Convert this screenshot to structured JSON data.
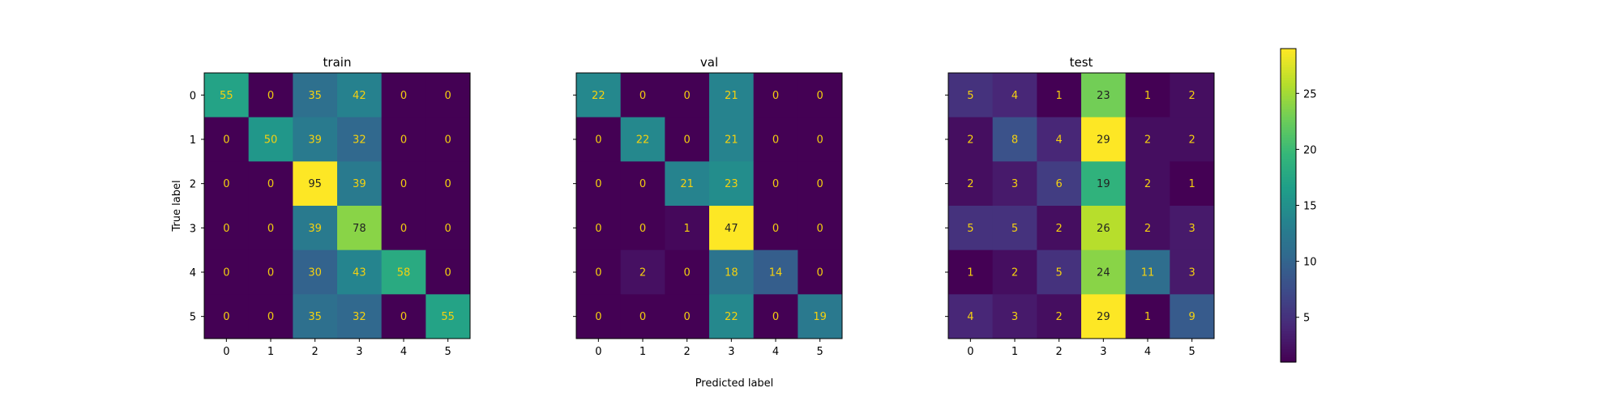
{
  "figure": {
    "xlabel": "Predicted label",
    "ylabel": "True label"
  },
  "colorbar": {
    "ticks": [
      5,
      10,
      15,
      20,
      25
    ],
    "range": [
      1,
      29
    ],
    "colormap": "viridis"
  },
  "chart_data": [
    {
      "type": "heatmap",
      "title": "train",
      "x": [
        "0",
        "1",
        "2",
        "3",
        "4",
        "5"
      ],
      "y": [
        "0",
        "1",
        "2",
        "3",
        "4",
        "5"
      ],
      "xlabel": "Predicted label",
      "ylabel": "True label",
      "values": [
        [
          55,
          0,
          35,
          42,
          0,
          0
        ],
        [
          0,
          50,
          39,
          32,
          0,
          0
        ],
        [
          0,
          0,
          95,
          39,
          0,
          0
        ],
        [
          0,
          0,
          39,
          78,
          0,
          0
        ],
        [
          0,
          0,
          30,
          43,
          58,
          0
        ],
        [
          0,
          0,
          35,
          32,
          0,
          55
        ]
      ]
    },
    {
      "type": "heatmap",
      "title": "val",
      "x": [
        "0",
        "1",
        "2",
        "3",
        "4",
        "5"
      ],
      "y": [
        "0",
        "1",
        "2",
        "3",
        "4",
        "5"
      ],
      "xlabel": "",
      "ylabel": "",
      "values": [
        [
          22,
          0,
          0,
          21,
          0,
          0
        ],
        [
          0,
          22,
          0,
          21,
          0,
          0
        ],
        [
          0,
          0,
          21,
          23,
          0,
          0
        ],
        [
          0,
          0,
          1,
          47,
          0,
          0
        ],
        [
          0,
          2,
          0,
          18,
          14,
          0
        ],
        [
          0,
          0,
          0,
          22,
          0,
          19
        ]
      ]
    },
    {
      "type": "heatmap",
      "title": "test",
      "x": [
        "0",
        "1",
        "2",
        "3",
        "4",
        "5"
      ],
      "y": [
        "0",
        "1",
        "2",
        "3",
        "4",
        "5"
      ],
      "xlabel": "",
      "ylabel": "",
      "values": [
        [
          5,
          4,
          1,
          23,
          1,
          2
        ],
        [
          2,
          8,
          4,
          29,
          2,
          2
        ],
        [
          2,
          3,
          6,
          19,
          2,
          1
        ],
        [
          5,
          5,
          2,
          26,
          2,
          3
        ],
        [
          1,
          2,
          5,
          24,
          11,
          3
        ],
        [
          4,
          3,
          2,
          29,
          1,
          9
        ]
      ]
    }
  ]
}
